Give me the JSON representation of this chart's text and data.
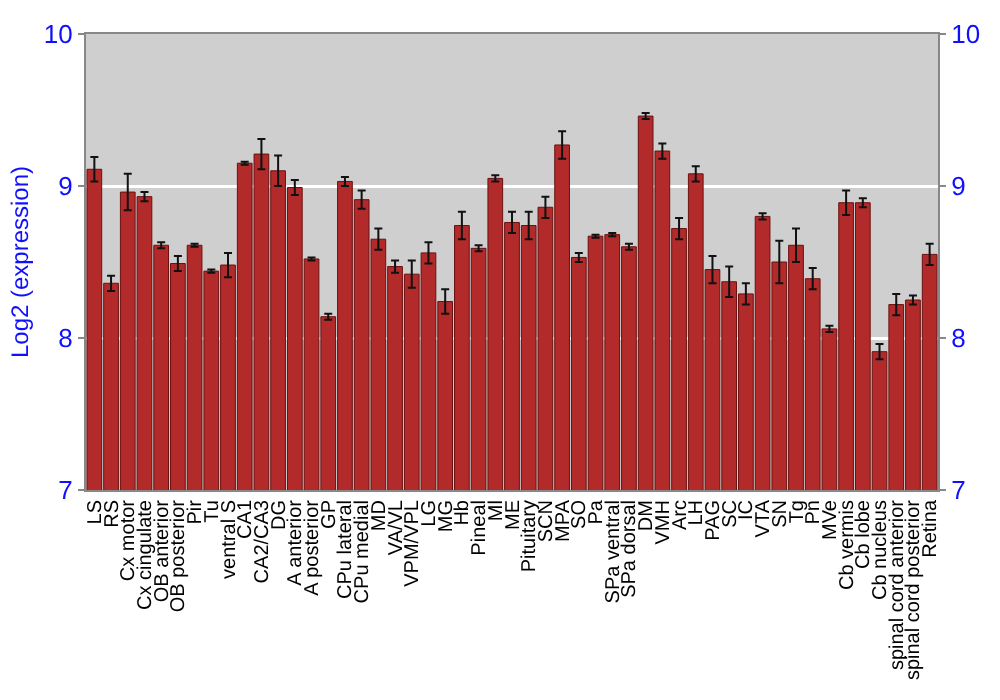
{
  "chart_data": {
    "type": "bar",
    "ylabel": "Log2 (expression)",
    "categories": [
      "LS",
      "RS",
      "Cx motor",
      "Cx cingulate",
      "OB anterior",
      "OB posterior",
      "Pir",
      "Tu",
      "ventral S",
      "CA1",
      "CA2/CA3",
      "DG",
      "A anterior",
      "A posterior",
      "GP",
      "CPu lateral",
      "CPu medial",
      "MD",
      "VA/VL",
      "VPM/VPL",
      "LG",
      "MG",
      "Hb",
      "Pineal",
      "Ml",
      "ME",
      "Pituitary",
      "SCN",
      "MPA",
      "SO",
      "Pa",
      "SPa ventral",
      "SPa dorsal",
      "DM",
      "VMH",
      "Arc",
      "LH",
      "PAG",
      "SC",
      "IC",
      "VTA",
      "SN",
      "Tg",
      "Pn",
      "MVe",
      "Cb vermis",
      "Cb lobe",
      "Cb nucleus",
      "spinal cord anterior",
      "spinal cord posterior",
      "Retina"
    ],
    "values": [
      9.11,
      8.36,
      8.96,
      8.93,
      8.61,
      8.49,
      8.61,
      8.44,
      8.48,
      9.15,
      9.21,
      9.1,
      8.99,
      8.52,
      8.14,
      9.03,
      8.91,
      8.65,
      8.47,
      8.42,
      8.56,
      8.24,
      8.74,
      8.59,
      9.05,
      8.76,
      8.74,
      8.86,
      9.27,
      8.53,
      8.67,
      8.68,
      8.6,
      9.46,
      9.23,
      8.72,
      9.08,
      8.45,
      8.37,
      8.29,
      8.8,
      8.5,
      8.61,
      8.39,
      8.06,
      8.89,
      8.89,
      7.91,
      8.22,
      8.25,
      8.55
    ],
    "errors": [
      0.08,
      0.05,
      0.12,
      0.03,
      0.02,
      0.05,
      0.01,
      0.01,
      0.08,
      0.01,
      0.1,
      0.1,
      0.05,
      0.01,
      0.02,
      0.03,
      0.06,
      0.07,
      0.04,
      0.09,
      0.07,
      0.08,
      0.09,
      0.02,
      0.02,
      0.07,
      0.09,
      0.07,
      0.09,
      0.03,
      0.01,
      0.01,
      0.02,
      0.02,
      0.05,
      0.07,
      0.05,
      0.09,
      0.1,
      0.07,
      0.02,
      0.14,
      0.11,
      0.07,
      0.02,
      0.08,
      0.03,
      0.05,
      0.07,
      0.03,
      0.07
    ],
    "color": "#b22a2a",
    "ylim": [
      7,
      10
    ],
    "yticks": [
      7,
      8,
      9,
      10
    ],
    "y2lim": [
      7,
      10
    ],
    "y2ticks": [
      7,
      8,
      9,
      10
    ],
    "grid": "y"
  }
}
